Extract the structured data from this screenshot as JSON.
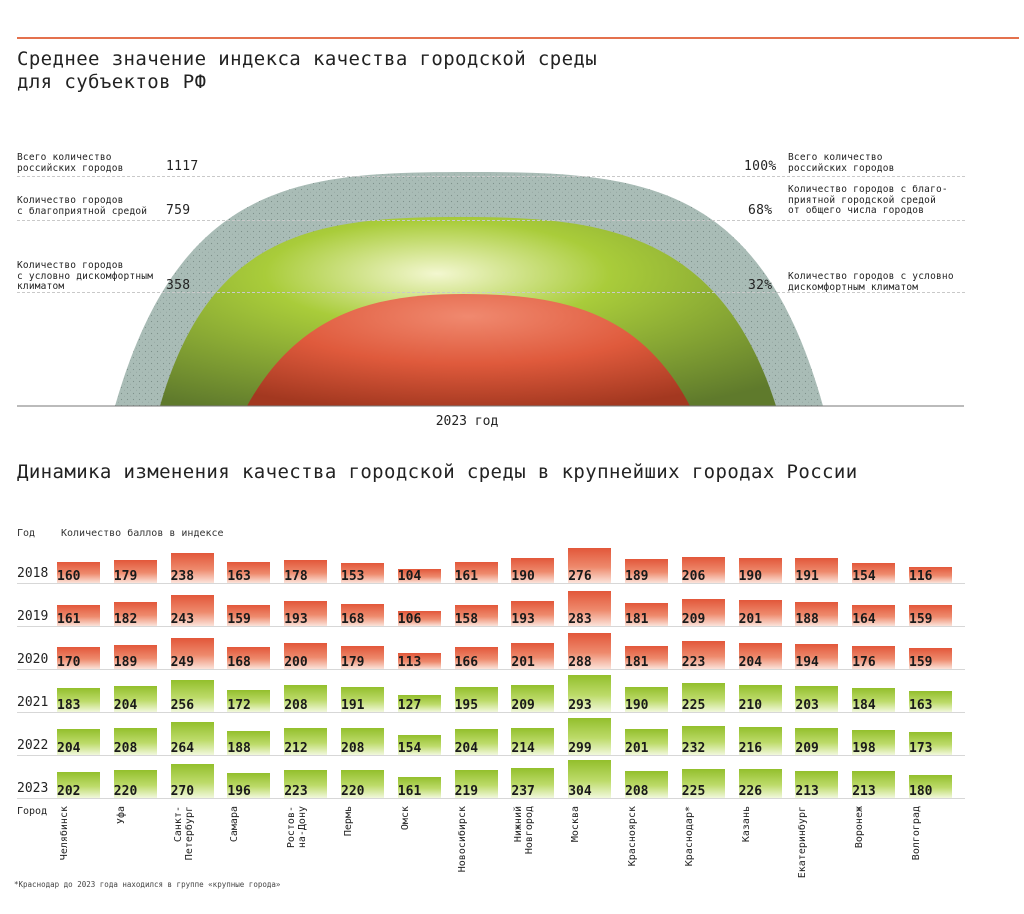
{
  "header": {
    "title": "Среднее значение индекса качества городской среды\nдля субъектов РФ"
  },
  "dome": {
    "year_caption": "2023 год",
    "left": [
      {
        "label": "Всего количество\nроссийских городов",
        "value": "1117"
      },
      {
        "label": "Количество городов\nс благоприятной средой",
        "value": "759"
      },
      {
        "label": "Количество городов\nс условно дискомфортным\nклиматом",
        "value": "358"
      }
    ],
    "right": [
      {
        "label": "Всего количество\nроссийских городов",
        "value": "100%"
      },
      {
        "label": "Количество городов с благо-\nприятной городской средой\nот общего числа городов",
        "value": "68%"
      },
      {
        "label": "Количество городов с условно\nдискомфортным климатом",
        "value": "32%"
      }
    ],
    "colors": {
      "total": "#a9bcb6",
      "favorable": "#9dc534",
      "uncomfortable": "#e0573a"
    }
  },
  "dynamics": {
    "title": "Динамика изменения качества городской среды в крупнейших городах России",
    "year_header": "Год",
    "score_header": "Количество баллов в индексе",
    "city_header": "Город",
    "footnote": "*Краснодар до 2023 года находился в группе «крупные города»"
  },
  "chart_data": {
    "type": "table",
    "title": "Динамика изменения качества городской среды в крупнейших городах России",
    "unit": "Количество баллов в индексе",
    "years": [
      "2018",
      "2019",
      "2020",
      "2021",
      "2022",
      "2023"
    ],
    "row_colors": [
      "red",
      "red",
      "red",
      "green",
      "green",
      "green"
    ],
    "cities": [
      "Челябинск",
      "Уфа",
      "Санкт-\nПетербург",
      "Самара",
      "Ростов-\nна-Дону",
      "Пермь",
      "Омск",
      "Новосибирск",
      "Нижний\nНовгород",
      "Москва",
      "Красноярск",
      "Краснодар*",
      "Казань",
      "Екатеринбург",
      "Воронеж",
      "Волгоград"
    ],
    "values": [
      [
        160,
        179,
        238,
        163,
        178,
        153,
        104,
        161,
        190,
        276,
        189,
        206,
        190,
        191,
        154,
        116
      ],
      [
        161,
        182,
        243,
        159,
        193,
        168,
        106,
        158,
        193,
        283,
        181,
        209,
        201,
        188,
        164,
        159
      ],
      [
        170,
        189,
        249,
        168,
        200,
        179,
        113,
        166,
        201,
        288,
        181,
        223,
        204,
        194,
        176,
        159
      ],
      [
        183,
        204,
        256,
        172,
        208,
        191,
        127,
        195,
        209,
        293,
        190,
        225,
        210,
        203,
        184,
        163
      ],
      [
        204,
        208,
        264,
        188,
        212,
        208,
        154,
        204,
        214,
        299,
        201,
        232,
        216,
        209,
        198,
        173
      ],
      [
        202,
        220,
        270,
        196,
        223,
        220,
        161,
        219,
        237,
        304,
        208,
        225,
        226,
        213,
        213,
        180
      ]
    ]
  }
}
